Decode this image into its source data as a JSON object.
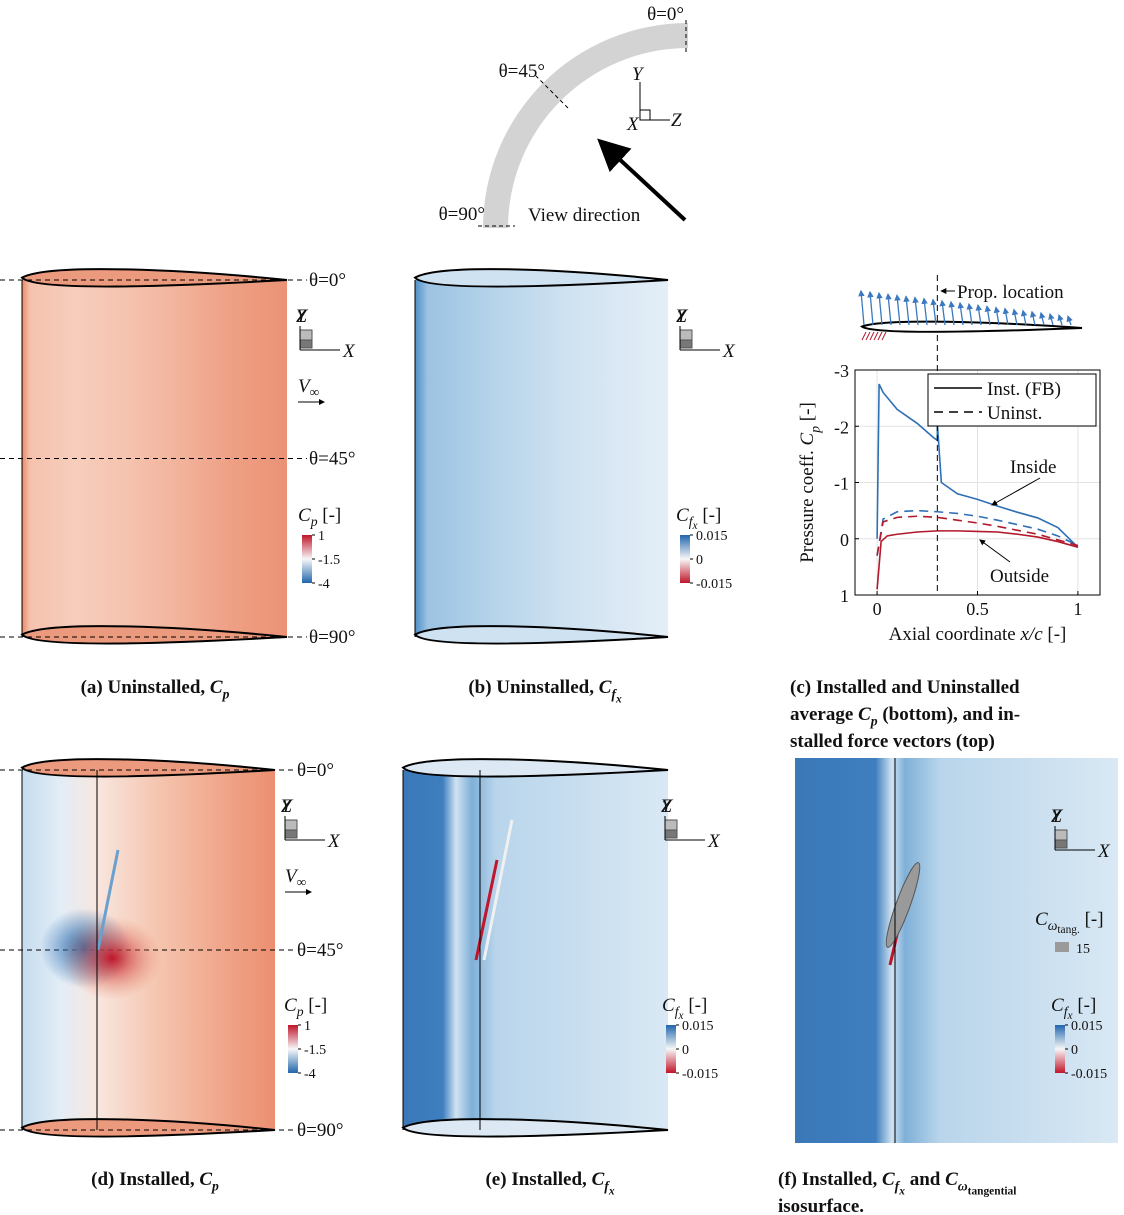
{
  "diagram": {
    "theta_labels": [
      "θ=0°",
      "θ=45°",
      "θ=90°"
    ],
    "triad": {
      "y": "Y",
      "x": "X",
      "z": "Z"
    },
    "view_direction": "View direction"
  },
  "flow": [
    {
      "text": "V",
      "italic": true
    },
    {
      "text": "∞",
      "level": 1
    }
  ],
  "cp_colorbar": {
    "title": [
      {
        "text": "C",
        "italic": true
      },
      {
        "text": "p",
        "italic": true,
        "level": 1
      },
      {
        "text": " [-]"
      }
    ],
    "lim": [
      -4,
      1
    ],
    "ticks": [
      1,
      -1.5,
      -4
    ]
  },
  "cfx_colorbar": {
    "title": [
      {
        "text": "C",
        "italic": true
      },
      {
        "text": "f",
        "italic": true,
        "level": 1
      },
      {
        "text": "x",
        "italic": true,
        "level": 2
      },
      {
        "text": " [-]"
      }
    ],
    "lim": [
      -0.015,
      0.015
    ],
    "ticks": [
      0.015,
      0,
      -0.015
    ]
  },
  "isosurface_legend": {
    "title": [
      {
        "text": "C",
        "italic": true
      },
      {
        "text": "ω",
        "italic": true,
        "level": 1
      },
      {
        "text": "tang.",
        "level": 2
      },
      {
        "text": " [-]"
      }
    ],
    "value": 15
  },
  "captions": {
    "a": [
      [
        {
          "text": "(a) Uninstalled, "
        },
        {
          "text": "C",
          "italic": true
        },
        {
          "text": "p",
          "italic": true,
          "level": 1
        }
      ]
    ],
    "b": [
      [
        {
          "text": "(b) Uninstalled, "
        },
        {
          "text": "C",
          "italic": true
        },
        {
          "text": "f",
          "italic": true,
          "level": 1
        },
        {
          "text": "x",
          "italic": true,
          "level": 2
        }
      ]
    ],
    "c": [
      [
        {
          "text": "(c) Installed and Uninstalled"
        }
      ],
      [
        {
          "text": "average "
        },
        {
          "text": "C",
          "italic": true
        },
        {
          "text": "p",
          "italic": true,
          "level": 1
        },
        {
          "text": " (bottom), and in-"
        }
      ],
      [
        {
          "text": "stalled force vectors (top)"
        }
      ]
    ],
    "d": [
      [
        {
          "text": "(d) Installed, "
        },
        {
          "text": "C",
          "italic": true
        },
        {
          "text": "p",
          "italic": true,
          "level": 1
        }
      ]
    ],
    "e": [
      [
        {
          "text": "(e) Installed, "
        },
        {
          "text": "C",
          "italic": true
        },
        {
          "text": "f",
          "italic": true,
          "level": 1
        },
        {
          "text": "x",
          "italic": true,
          "level": 2
        }
      ]
    ],
    "f": [
      [
        {
          "text": "(f) Installed, "
        },
        {
          "text": "C",
          "italic": true
        },
        {
          "text": "f",
          "italic": true,
          "level": 1
        },
        {
          "text": "x",
          "italic": true,
          "level": 2
        },
        {
          "text": " and "
        },
        {
          "text": "C",
          "italic": true
        },
        {
          "text": "ω",
          "italic": true,
          "level": 1
        },
        {
          "text": "tangential",
          "level": 2
        }
      ],
      [
        {
          "text": "isosurface."
        }
      ]
    ]
  },
  "chart_data": {
    "type": "line",
    "xlabel": [
      {
        "text": "Axial coordinate "
      },
      {
        "text": "x/c",
        "italic": true
      },
      {
        "text": " [-]"
      }
    ],
    "ylabel": [
      {
        "text": "Pressure coeff. "
      },
      {
        "text": "C",
        "italic": true
      },
      {
        "text": "p",
        "italic": true,
        "level": 1
      },
      {
        "text": " [-]"
      }
    ],
    "xlim": [
      -0.11,
      1.11
    ],
    "xticks": [
      0,
      0.5,
      1
    ],
    "ylim": [
      -3,
      1
    ],
    "yticks": [
      -3,
      -2,
      -1,
      0,
      1
    ],
    "y_inverted": true,
    "grid": true,
    "legend": {
      "position": "upper right",
      "entries": [
        {
          "name": "Inst. (FB)",
          "dash": "solid"
        },
        {
          "name": "Uninst.",
          "dash": "dashed"
        }
      ]
    },
    "annotations": {
      "inside": "Inside",
      "outside": "Outside",
      "prop_location": "Prop. location"
    },
    "prop_location_x": 0.3,
    "series": [
      {
        "dash": "solid",
        "color": "#2f6fb5",
        "x": [
          0,
          0.01,
          0.03,
          0.1,
          0.2,
          0.28,
          0.3,
          0.3,
          0.32,
          0.4,
          0.5,
          0.6,
          0.7,
          0.8,
          0.9,
          1.0
        ],
        "values": [
          0,
          -2.75,
          -2.6,
          -2.3,
          -2.05,
          -1.8,
          -1.75,
          -2.05,
          -1.0,
          -0.8,
          -0.7,
          -0.58,
          -0.47,
          -0.37,
          -0.2,
          0.15
        ]
      },
      {
        "dash": "solid",
        "color": "#b2182b",
        "x": [
          0,
          0.02,
          0.05,
          0.1,
          0.2,
          0.3,
          0.4,
          0.5,
          0.6,
          0.7,
          0.8,
          0.9,
          1.0
        ],
        "values": [
          0.9,
          0.05,
          -0.05,
          -0.08,
          -0.12,
          -0.14,
          -0.14,
          -0.13,
          -0.12,
          -0.08,
          -0.03,
          0.05,
          0.15
        ]
      },
      {
        "dash": "dashed",
        "color": "#2f6fb5",
        "x": [
          0,
          0.03,
          0.1,
          0.2,
          0.3,
          0.4,
          0.5,
          0.6,
          0.7,
          0.8,
          0.9,
          1.0
        ],
        "values": [
          0.3,
          -0.35,
          -0.48,
          -0.5,
          -0.48,
          -0.45,
          -0.4,
          -0.33,
          -0.25,
          -0.17,
          -0.05,
          0.12
        ]
      },
      {
        "dash": "dashed",
        "color": "#b2182b",
        "x": [
          0,
          0.03,
          0.1,
          0.2,
          0.3,
          0.4,
          0.5,
          0.6,
          0.7,
          0.8,
          0.9,
          1.0
        ],
        "values": [
          0.3,
          -0.3,
          -0.38,
          -0.4,
          -0.38,
          -0.33,
          -0.28,
          -0.22,
          -0.15,
          -0.08,
          0.02,
          0.12
        ]
      }
    ]
  }
}
